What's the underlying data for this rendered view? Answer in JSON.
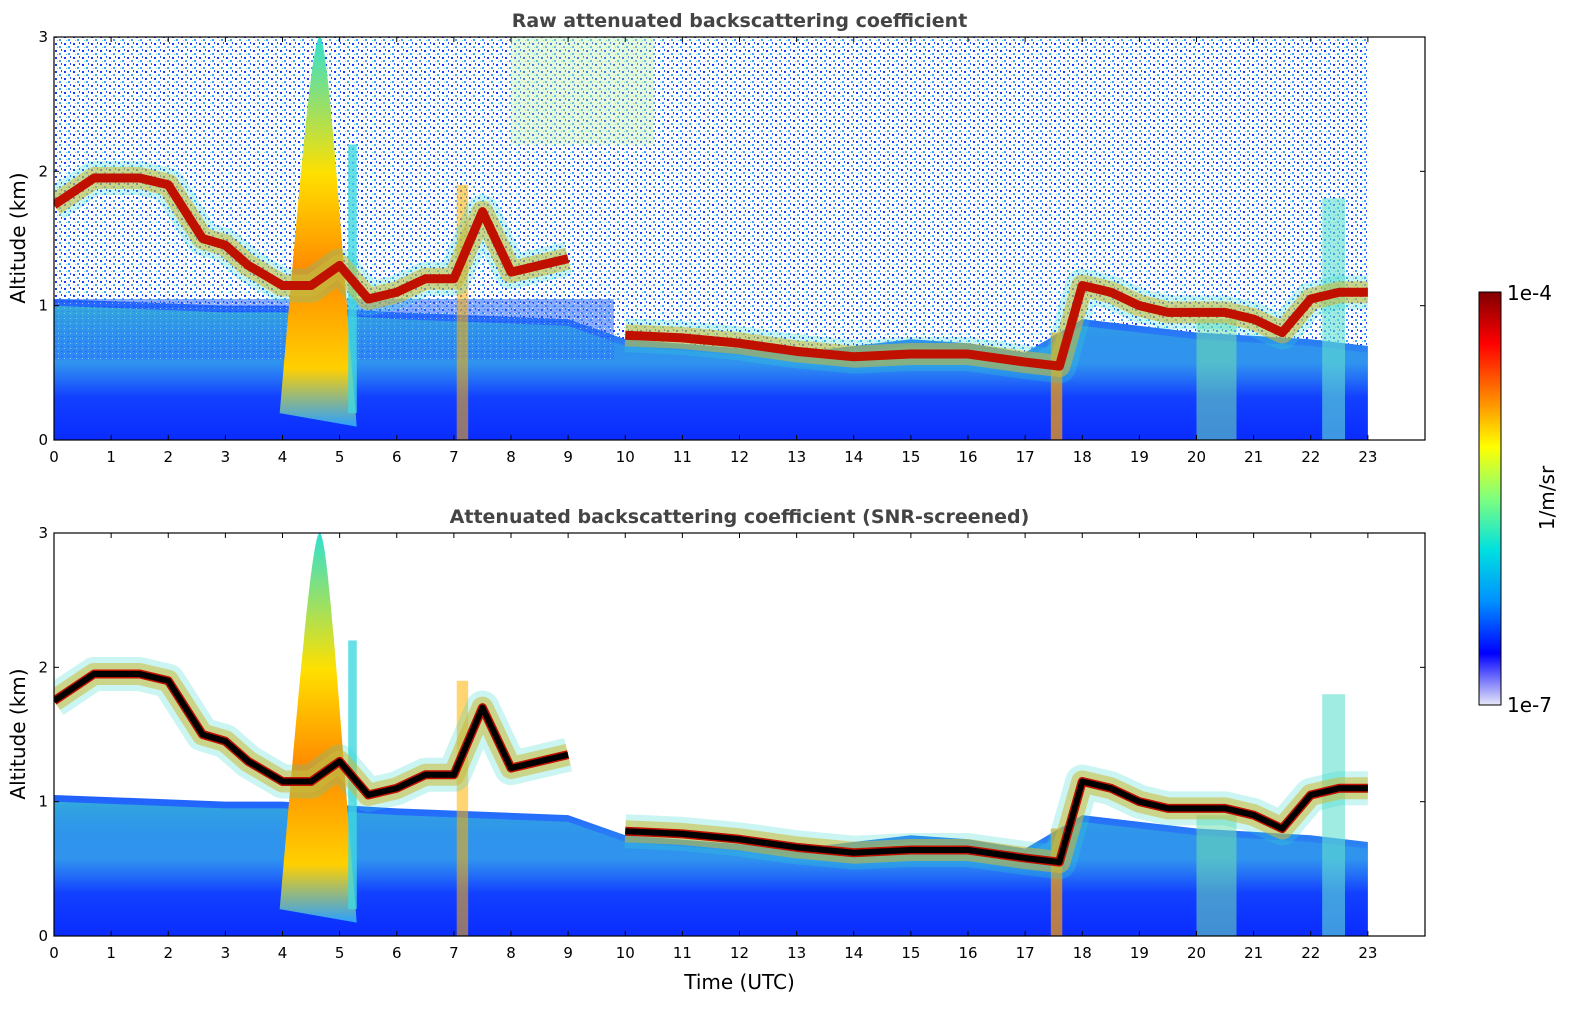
{
  "colors": {
    "colormap_stops": [
      "#e8e8f8",
      "#0000ff",
      "#0090ff",
      "#00e0e0",
      "#7fff7f",
      "#ffff00",
      "#ff7f00",
      "#ff0000",
      "#800000"
    ],
    "background": "#ffffff",
    "saturated": "#000000"
  },
  "chart_data": [
    {
      "type": "heatmap",
      "title": "Raw attenuated backscattering coefficient",
      "xlabel": "",
      "ylabel": "Altitude (km)",
      "xlim": [
        0,
        24
      ],
      "ylim": [
        0,
        3
      ],
      "xticks": [
        "0",
        "1",
        "2",
        "3",
        "4",
        "5",
        "6",
        "7",
        "8",
        "9",
        "10",
        "11",
        "12",
        "13",
        "14",
        "15",
        "16",
        "17",
        "18",
        "19",
        "20",
        "21",
        "22",
        "23"
      ],
      "yticks": [
        "0",
        "1",
        "2",
        "3"
      ],
      "data_extent_hours": [
        0,
        23
      ],
      "cloud_layer": {
        "time": [
          0,
          0.7,
          1.5,
          2.0,
          2.6,
          3.0,
          3.4,
          4.0,
          4.5,
          5.0,
          5.5,
          6.0,
          6.5,
          7.0,
          7.5,
          8.0,
          8.5,
          9.0,
          9.5,
          10.0,
          11.0,
          12.0,
          13.0,
          14.0,
          15.0,
          16.0,
          17.0,
          17.6,
          18.0,
          18.5,
          19.0,
          19.5,
          20.0,
          20.5,
          21.0,
          21.5,
          22.0,
          22.5,
          23.0
        ],
        "base_km": [
          1.75,
          1.95,
          1.95,
          1.9,
          1.5,
          1.45,
          1.3,
          1.15,
          1.15,
          1.3,
          1.05,
          1.1,
          1.2,
          1.2,
          1.7,
          1.25,
          1.3,
          1.35,
          null,
          0.78,
          0.76,
          0.72,
          0.66,
          0.62,
          0.64,
          0.64,
          0.58,
          0.55,
          1.15,
          1.1,
          1.0,
          0.95,
          0.95,
          0.95,
          0.9,
          0.8,
          1.05,
          1.1,
          1.1
        ]
      },
      "notes_visible": "cloud at 4-5 h extends from surface to ~3 km"
    },
    {
      "type": "heatmap",
      "title": "Attenuated backscattering coefficient (SNR-screened)",
      "xlabel": "Time (UTC)",
      "ylabel": "Altitude (km)",
      "xlim": [
        0,
        24
      ],
      "ylim": [
        0,
        3
      ],
      "xticks": [
        "0",
        "1",
        "2",
        "3",
        "4",
        "5",
        "6",
        "7",
        "8",
        "9",
        "10",
        "11",
        "12",
        "13",
        "14",
        "15",
        "16",
        "17",
        "18",
        "19",
        "20",
        "21",
        "22",
        "23"
      ],
      "yticks": [
        "0",
        "1",
        "2",
        "3"
      ],
      "data_extent_hours": [
        0,
        23
      ]
    }
  ],
  "colorbar": {
    "label": "1/m/sr",
    "max_label": "1e-4",
    "min_label": "1e-7",
    "scale": "log",
    "range": [
      1e-07,
      0.0001
    ]
  }
}
